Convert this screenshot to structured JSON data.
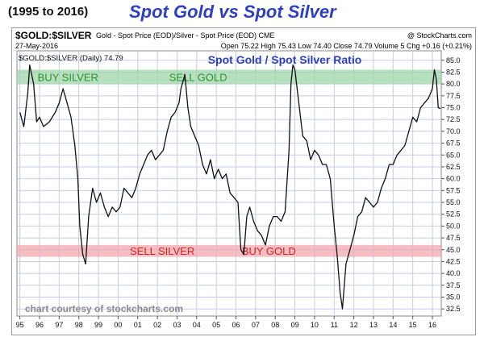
{
  "page": {
    "range_label": "(1995 to 2016)",
    "title": "Spot Gold vs Spot Silver"
  },
  "header": {
    "symbol": "$GOLD:$SILVER",
    "description": "Gold - Spot Price (EOD)/Silver - Spot Price (EOD)  CME",
    "source": "@ StockCharts.com",
    "date": "27-May-2016",
    "ohlc": "Open 75.22  High 75.43  Low 74.40  Close 74.79  Volume 5  Chg +0.16 (+0.21%)"
  },
  "colors": {
    "line": "#111111",
    "buy_silver_band": "#9ed6a8",
    "sell_silver_band": "#f0a8ae",
    "band_text_green": "#2f8f2f",
    "band_text_red": "#d32020",
    "title_blue": "#2d3fc2",
    "grid": "#c7cbe8"
  },
  "chart_data": {
    "type": "line",
    "title": "Spot Gold / Spot Silver Ratio",
    "legend": "$GOLD:$SILVER (Daily) 74.79",
    "legend_position": "top-left",
    "grid": true,
    "ylim": [
      31,
      87
    ],
    "xlim": [
      1994.85,
      2016.45
    ],
    "yticks": [
      32.5,
      35.0,
      37.5,
      40.0,
      42.5,
      45.0,
      47.5,
      50.0,
      52.5,
      55.0,
      57.5,
      60.0,
      62.5,
      65.0,
      67.5,
      70.0,
      72.5,
      75.0,
      77.5,
      80.0,
      82.5,
      85.0
    ],
    "ytick_labels": [
      "32.5",
      "35.0",
      "37.5",
      "40.0",
      "42.5",
      "45.0",
      "47.5",
      "50.0",
      "52.5",
      "55.0",
      "57.5",
      "60.0",
      "62.5",
      "65.0",
      "67.5",
      "70.0",
      "72.5",
      "75.0",
      "77.5",
      "80.0",
      "82.5",
      "85.0"
    ],
    "xticks": [
      1995,
      1996,
      1997,
      1998,
      1999,
      2000,
      2001,
      2002,
      2003,
      2004,
      2005,
      2006,
      2007,
      2008,
      2009,
      2010,
      2011,
      2012,
      2013,
      2014,
      2015,
      2016
    ],
    "xtick_labels": [
      "95",
      "96",
      "97",
      "98",
      "99",
      "00",
      "01",
      "02",
      "03",
      "04",
      "05",
      "06",
      "07",
      "08",
      "09",
      "10",
      "11",
      "12",
      "13",
      "14",
      "15",
      "16"
    ],
    "bands": [
      {
        "y0": 80.0,
        "y1": 83.0,
        "labels": [
          "BUY SILVER",
          "SELL GOLD"
        ],
        "label_x": [
          1995.9,
          2002.6
        ],
        "color": "#9ed6a8",
        "text_color": "#2f8f2f"
      },
      {
        "y0": 43.5,
        "y1": 46.0,
        "labels": [
          "SELL SILVER",
          "BUY GOLD"
        ],
        "label_x": [
          2000.6,
          2006.3
        ],
        "color": "#f0a8ae",
        "text_color": "#d32020"
      }
    ],
    "series": [
      {
        "x": [
          1995.0,
          1995.2,
          1995.4,
          1995.5,
          1995.7,
          1995.85,
          1996.0,
          1996.2,
          1996.5,
          1996.8,
          1997.0,
          1997.2,
          1997.4,
          1997.6,
          1997.8,
          1997.95,
          1998.05,
          1998.2,
          1998.35,
          1998.5,
          1998.7,
          1998.9,
          1999.1,
          1999.3,
          1999.5,
          1999.7,
          1999.9,
          2000.1,
          2000.3,
          2000.5,
          2000.7,
          2000.9,
          2001.1,
          2001.3,
          2001.5,
          2001.7,
          2001.9,
          2002.1,
          2002.3,
          2002.5,
          2002.7,
          2002.9,
          2003.1,
          2003.2,
          2003.4,
          2003.55,
          2003.7,
          2003.9,
          2004.1,
          2004.3,
          2004.5,
          2004.7,
          2004.9,
          2005.1,
          2005.3,
          2005.5,
          2005.7,
          2005.9,
          2006.1,
          2006.25,
          2006.4,
          2006.55,
          2006.7,
          2006.9,
          2007.1,
          2007.3,
          2007.5,
          2007.7,
          2007.9,
          2008.1,
          2008.3,
          2008.5,
          2008.7,
          2008.8,
          2008.9,
          2009.0,
          2009.2,
          2009.4,
          2009.6,
          2009.8,
          2010.0,
          2010.2,
          2010.4,
          2010.6,
          2010.8,
          2011.0,
          2011.15,
          2011.3,
          2011.42,
          2011.6,
          2011.8,
          2012.0,
          2012.2,
          2012.4,
          2012.6,
          2012.8,
          2013.0,
          2013.2,
          2013.4,
          2013.6,
          2013.8,
          2014.0,
          2014.2,
          2014.4,
          2014.6,
          2014.8,
          2015.0,
          2015.2,
          2015.4,
          2015.6,
          2015.8,
          2016.0,
          2016.1,
          2016.2,
          2016.3,
          2016.41
        ],
        "values": [
          74.0,
          71.0,
          78.0,
          84.0,
          80.0,
          72.0,
          73.0,
          71.0,
          72.0,
          74.0,
          76.0,
          79.0,
          76.0,
          73.0,
          67.0,
          60.0,
          50.0,
          44.0,
          42.0,
          52.0,
          58.0,
          55.0,
          57.0,
          54.0,
          52.0,
          54.0,
          53.0,
          54.0,
          58.0,
          57.0,
          56.0,
          58.0,
          61.0,
          63.0,
          65.0,
          66.0,
          64.0,
          65.0,
          66.0,
          70.0,
          73.0,
          74.0,
          76.0,
          79.0,
          82.0,
          75.0,
          71.0,
          69.0,
          67.0,
          63.0,
          61.0,
          64.0,
          60.0,
          62.0,
          60.0,
          61.0,
          57.0,
          56.0,
          55.0,
          45.0,
          44.0,
          52.0,
          54.0,
          51.0,
          49.0,
          48.0,
          46.0,
          50.0,
          52.0,
          52.0,
          51.0,
          53.0,
          66.0,
          80.0,
          84.0,
          83.0,
          76.0,
          69.0,
          68.0,
          64.0,
          66.0,
          65.0,
          63.0,
          63.0,
          60.0,
          50.0,
          44.0,
          36.0,
          32.5,
          42.0,
          45.0,
          48.0,
          52.0,
          53.0,
          56.0,
          55.0,
          54.0,
          55.0,
          58.0,
          60.0,
          63.0,
          63.0,
          65.0,
          66.0,
          67.0,
          70.0,
          73.0,
          72.0,
          75.0,
          76.0,
          77.0,
          79.0,
          83.0,
          81.0,
          75.0,
          74.79
        ]
      }
    ],
    "courtesy": "chart courtesy of stockcharts.com"
  }
}
